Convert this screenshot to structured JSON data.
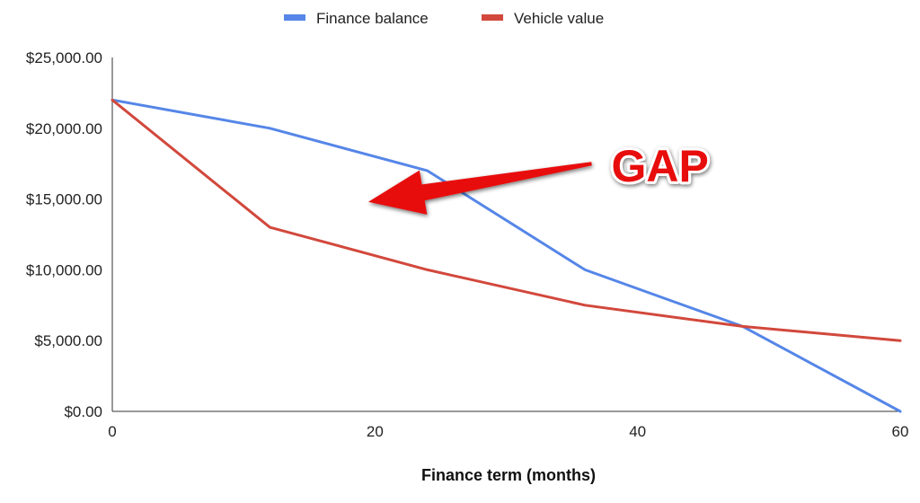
{
  "chart_data": {
    "type": "line",
    "title": "",
    "xlabel": "Finance term (months)",
    "ylabel": "",
    "xlim": [
      0,
      60
    ],
    "ylim": [
      0,
      25000
    ],
    "x_ticks": [
      0,
      20,
      40,
      60
    ],
    "x_tick_labels": [
      "0",
      "20",
      "40",
      "60"
    ],
    "y_ticks": [
      0,
      5000,
      10000,
      15000,
      20000,
      25000
    ],
    "y_tick_labels": [
      "$0.00",
      "$5,000.00",
      "$10,000.00",
      "$15,000.00",
      "$20,000.00",
      "$25,000.00"
    ],
    "grid": false,
    "legend_position": "top",
    "series": [
      {
        "name": "Finance balance",
        "color": "#5586e8",
        "x": [
          0,
          12,
          24,
          36,
          48,
          60
        ],
        "y": [
          22000,
          20000,
          17000,
          10000,
          6000,
          0
        ]
      },
      {
        "name": "Vehicle value",
        "color": "#d2483c",
        "x": [
          0,
          12,
          24,
          36,
          48,
          60
        ],
        "y": [
          22000,
          13000,
          10000,
          7500,
          6000,
          5000
        ]
      }
    ],
    "annotations": [
      {
        "text": "GAP",
        "color": "#e8110f",
        "arrow_from": [
          36.5,
          17500
        ],
        "arrow_to": [
          19.5,
          14800
        ]
      }
    ]
  }
}
